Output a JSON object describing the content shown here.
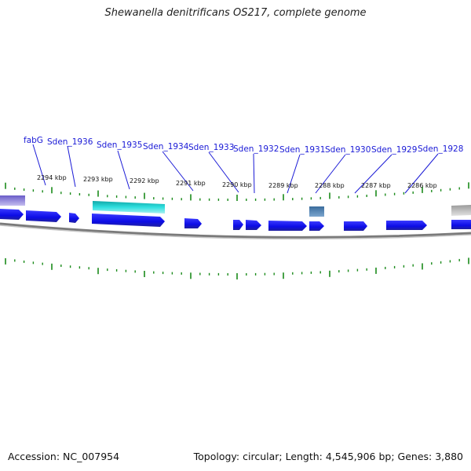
{
  "title": "Shewanella denitrificans OS217, complete genome",
  "footer": {
    "accession": "Accession: NC_007954",
    "summary": "Topology: circular; Length: 4,545,906 bp; Genes: 3,880"
  },
  "colors": {
    "gene": "#1010ee",
    "highlight": "#20c8c8",
    "rna": "#4a7fb5",
    "purple": "#7b6fd6",
    "grey": "#c8c8c8",
    "ticks": "#1a8a1a",
    "labels": "#1a1ad6",
    "backbone": "#888888"
  },
  "position_ticks": [
    {
      "label": "2294 kbp"
    },
    {
      "label": "2293 kbp"
    },
    {
      "label": "2292 kbp"
    },
    {
      "label": "2291 kbp"
    },
    {
      "label": "2290 kbp"
    },
    {
      "label": "2289 kbp"
    },
    {
      "label": "2288 kbp"
    },
    {
      "label": "2287 kbp"
    },
    {
      "label": "2286 kbp"
    }
  ],
  "gene_labels": [
    "fabG",
    "Sden_1936",
    "Sden_1935",
    "Sden_1934",
    "Sden_1933",
    "Sden_1932",
    "Sden_1931",
    "Sden_1930",
    "Sden_1929",
    "Sden_1928"
  ]
}
